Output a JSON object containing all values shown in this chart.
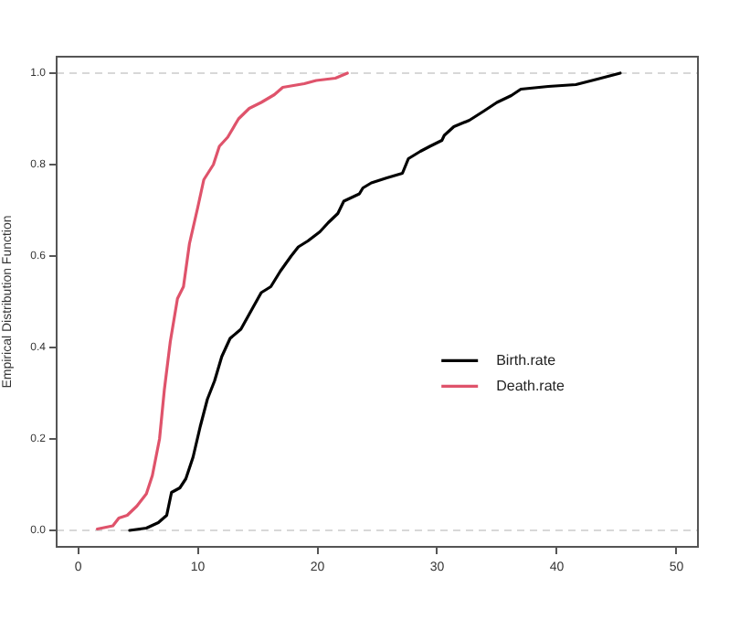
{
  "chart_data": {
    "type": "line",
    "ylabel": "Empirical Distribution Function",
    "xlim": [
      -1.8,
      51.8
    ],
    "xticks": [
      0,
      10,
      20,
      30,
      40,
      50
    ],
    "ylim": [
      -0.036,
      1.036
    ],
    "yticks": [
      {
        "value": 0,
        "label": "0.0"
      },
      {
        "value": 0.2,
        "label": "0.2"
      },
      {
        "value": 0.4,
        "label": "0.4"
      },
      {
        "value": 0.6,
        "label": "0.6"
      },
      {
        "value": 0.8,
        "label": "0.8"
      },
      {
        "value": 1,
        "label": "1.0"
      }
    ],
    "grid": false,
    "legend": "right",
    "marker": "none",
    "line_style": "solid",
    "ref_lines": [
      {
        "axis": "y",
        "value": 0,
        "label": null,
        "color": "#cccccc",
        "line_style": "dashed"
      },
      {
        "axis": "y",
        "value": 1,
        "label": null,
        "color": "#cccccc",
        "line_style": "dashed"
      }
    ],
    "series": [
      {
        "name": "Birth.rate",
        "color": "#000000",
        "x": [
          4.3,
          5.7,
          6.7,
          7.4,
          7.8,
          8.5,
          9.0,
          9.6,
          10.2,
          10.8,
          11.4,
          12.0,
          12.7,
          13.6,
          14.3,
          15.3,
          16.1,
          16.9,
          17.8,
          18.4,
          19.2,
          20.2,
          20.9,
          21.7,
          22.2,
          23.5,
          23.8,
          24.5,
          25.8,
          27.1,
          27.6,
          28.6,
          29.4,
          30.4,
          30.6,
          31.4,
          32.7,
          33.9,
          35.0,
          36.2,
          37.0,
          39.3,
          41.6,
          43.4,
          45.3
        ],
        "values": [
          0.0,
          0.005,
          0.017,
          0.033,
          0.083,
          0.093,
          0.113,
          0.16,
          0.227,
          0.287,
          0.327,
          0.38,
          0.42,
          0.44,
          0.473,
          0.52,
          0.533,
          0.567,
          0.6,
          0.62,
          0.633,
          0.653,
          0.673,
          0.693,
          0.72,
          0.736,
          0.749,
          0.76,
          0.771,
          0.781,
          0.813,
          0.829,
          0.84,
          0.853,
          0.864,
          0.883,
          0.897,
          0.917,
          0.936,
          0.951,
          0.965,
          0.971,
          0.975,
          0.987,
          1.0
        ]
      },
      {
        "name": "Death.rate",
        "color": "#df536b",
        "x": [
          1.6,
          2.9,
          3.4,
          4.1,
          4.9,
          5.7,
          6.2,
          6.8,
          7.2,
          7.7,
          8.3,
          8.8,
          9.3,
          10.0,
          10.5,
          11.3,
          11.8,
          12.5,
          13.4,
          14.3,
          15.3,
          16.4,
          17.1,
          18.9,
          19.9,
          21.5,
          22.5
        ],
        "values": [
          0.003,
          0.01,
          0.027,
          0.033,
          0.053,
          0.08,
          0.12,
          0.2,
          0.307,
          0.413,
          0.507,
          0.533,
          0.627,
          0.707,
          0.767,
          0.8,
          0.84,
          0.86,
          0.9,
          0.923,
          0.936,
          0.953,
          0.969,
          0.977,
          0.984,
          0.989,
          1.0
        ]
      }
    ]
  }
}
